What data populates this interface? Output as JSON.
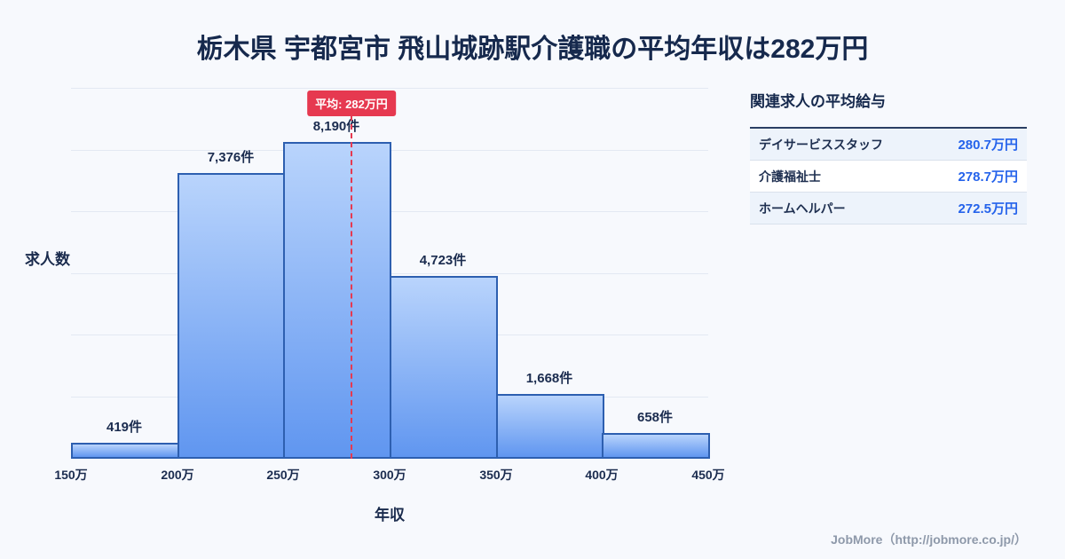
{
  "title": "栃木県 宇都宮市 飛山城跡駅介護職の平均年収は282万円",
  "chart_data": {
    "type": "bar",
    "title": "栃木県 宇都宮市 飛山城跡駅介護職の平均年収は282万円",
    "xlabel": "年収",
    "ylabel": "求人数",
    "x_min": 150,
    "x_max": 450,
    "x_ticks": [
      "150万",
      "200万",
      "250万",
      "300万",
      "350万",
      "400万",
      "450万"
    ],
    "ylim": [
      0,
      8600
    ],
    "grid": true,
    "bars": [
      {
        "range": "150万-200万",
        "value": 419,
        "label": "419件"
      },
      {
        "range": "200万-250万",
        "value": 7376,
        "label": "7,376件"
      },
      {
        "range": "250万-300万",
        "value": 8190,
        "label": "8,190件"
      },
      {
        "range": "300万-350万",
        "value": 4723,
        "label": "4,723件"
      },
      {
        "range": "350万-400万",
        "value": 1668,
        "label": "1,668件"
      },
      {
        "range": "400万-450万",
        "value": 658,
        "label": "658件"
      }
    ],
    "average_line": {
      "value": 282,
      "label": "平均: 282万円",
      "color": "#e63950"
    },
    "colors": {
      "bar_top": "#b9d4fc",
      "bar_bottom": "#6096f0",
      "bar_border": "#2d5fb0"
    }
  },
  "sidebar": {
    "heading": "関連求人の平均給与",
    "rows": [
      {
        "name": "デイサービススタッフ",
        "salary": "280.7万円"
      },
      {
        "name": "介護福祉士",
        "salary": "278.7万円"
      },
      {
        "name": "ホームヘルパー",
        "salary": "272.5万円"
      }
    ]
  },
  "footer": {
    "credit": "JobMore（http://jobmore.co.jp/）"
  }
}
